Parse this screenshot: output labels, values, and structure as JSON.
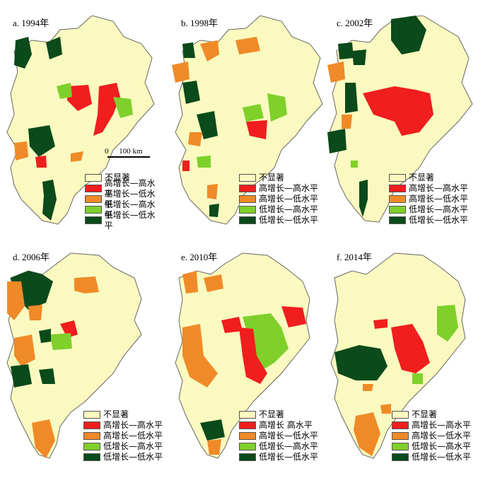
{
  "colors": {
    "not_significant": "#FAFAC0",
    "high_high": "#F01E1E",
    "high_low": "#F08A28",
    "low_high": "#7FD02A",
    "low_low": "#0B4A1A",
    "boundary": "#666666"
  },
  "legend": [
    {
      "label": "不显著",
      "color_key": "not_significant"
    },
    {
      "label": "高增长—高水平",
      "color_key": "high_high"
    },
    {
      "label": "高增长—低水平",
      "color_key": "high_low"
    },
    {
      "label": "低增长—高水平",
      "color_key": "low_high"
    },
    {
      "label": "低增长—低水平",
      "color_key": "low_low"
    }
  ],
  "legend_e_second": "高增长  高水平",
  "scale": {
    "zero": "0",
    "dist": "100 km"
  },
  "panels": [
    {
      "title": "a. 1994年",
      "year": 1994
    },
    {
      "title": "b. 1998年",
      "year": 1998
    },
    {
      "title": "c. 2002年",
      "year": 2002
    },
    {
      "title": "d. 2006年",
      "year": 2006
    },
    {
      "title": "e. 2010年",
      "year": 2010
    },
    {
      "title": "f. 2014年",
      "year": 2014
    }
  ]
}
